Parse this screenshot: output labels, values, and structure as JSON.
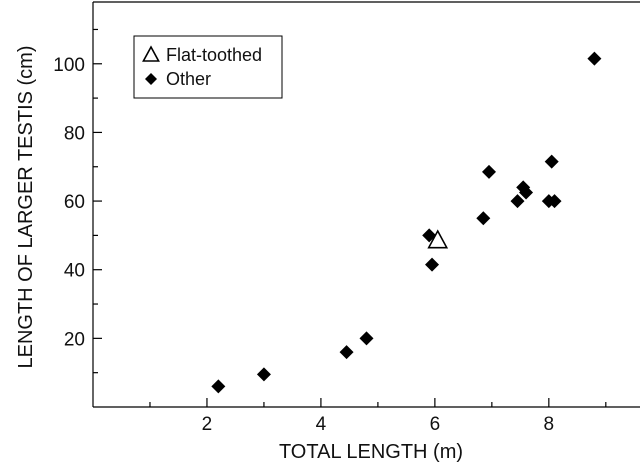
{
  "chart_data": {
    "type": "scatter",
    "title": "",
    "xlabel": "TOTAL LENGTH (m)",
    "ylabel": "LENGTH OF LARGER TESTIS (cm)",
    "xlim": [
      0,
      9.6
    ],
    "ylim": [
      0,
      118
    ],
    "x_ticks": [
      2,
      4,
      6,
      8
    ],
    "x_minor_ticks": [
      1,
      3,
      5,
      7,
      9
    ],
    "y_ticks": [
      20,
      40,
      60,
      80,
      100
    ],
    "y_minor_ticks": [
      10,
      30,
      50,
      70,
      90,
      110
    ],
    "grid": false,
    "legend_position": "top-left",
    "series": [
      {
        "name": "Flat-toothed",
        "marker": "open-triangle",
        "color": "#000000",
        "points": [
          {
            "x": 6.05,
            "y": 48.5
          }
        ]
      },
      {
        "name": "Other",
        "marker": "filled-diamond",
        "color": "#000000",
        "points": [
          {
            "x": 2.2,
            "y": 6.0
          },
          {
            "x": 3.0,
            "y": 9.5
          },
          {
            "x": 4.45,
            "y": 16.0
          },
          {
            "x": 4.8,
            "y": 20.0
          },
          {
            "x": 5.9,
            "y": 50.0
          },
          {
            "x": 5.95,
            "y": 41.5
          },
          {
            "x": 6.85,
            "y": 55.0
          },
          {
            "x": 6.95,
            "y": 68.5
          },
          {
            "x": 7.45,
            "y": 60.0
          },
          {
            "x": 7.55,
            "y": 64.0
          },
          {
            "x": 7.6,
            "y": 62.5
          },
          {
            "x": 8.0,
            "y": 60.0
          },
          {
            "x": 8.05,
            "y": 71.5
          },
          {
            "x": 8.1,
            "y": 60.0
          },
          {
            "x": 8.8,
            "y": 101.5
          }
        ]
      }
    ]
  }
}
